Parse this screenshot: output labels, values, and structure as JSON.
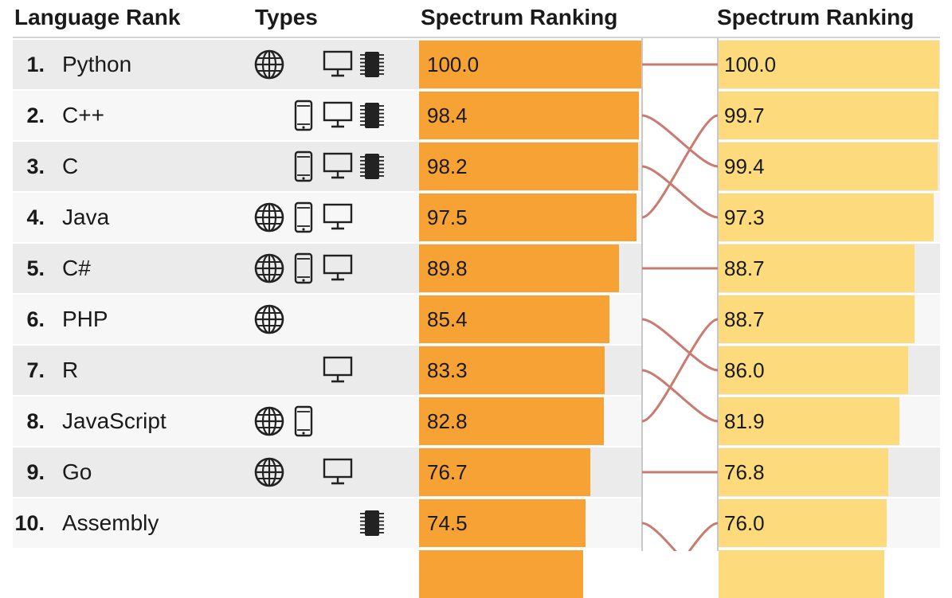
{
  "headers": {
    "language_rank": "Language Rank",
    "types": "Types",
    "spectrum_ranking_left": "Spectrum Ranking",
    "spectrum_ranking_right": "Spectrum Ranking"
  },
  "colors": {
    "left_bar": "#f7a234",
    "right_bar": "#fddb7c",
    "link": "#c87b70"
  },
  "chart_data": {
    "type": "bar",
    "columns": [
      "Spectrum Ranking",
      "Spectrum Ranking"
    ],
    "xlim": [
      0,
      100
    ],
    "rows": [
      {
        "rank": "1.",
        "language": "Python",
        "types": [
          "globe-icon",
          "desktop-icon",
          "chip-icon"
        ],
        "left": 100.0,
        "right": 100.0,
        "right_position": 1
      },
      {
        "rank": "2.",
        "language": "C++",
        "types": [
          "mobile-icon",
          "desktop-icon",
          "chip-icon"
        ],
        "left": 98.4,
        "right": 99.4,
        "right_position": 3
      },
      {
        "rank": "3.",
        "language": "C",
        "types": [
          "mobile-icon",
          "desktop-icon",
          "chip-icon"
        ],
        "left": 98.2,
        "right": 97.3,
        "right_position": 4
      },
      {
        "rank": "4.",
        "language": "Java",
        "types": [
          "globe-icon",
          "mobile-icon",
          "desktop-icon"
        ],
        "left": 97.5,
        "right": 99.7,
        "right_position": 2
      },
      {
        "rank": "5.",
        "language": "C#",
        "types": [
          "globe-icon",
          "mobile-icon",
          "desktop-icon"
        ],
        "left": 89.8,
        "right": 88.7,
        "right_position": 5
      },
      {
        "rank": "6.",
        "language": "PHP",
        "types": [
          "globe-icon"
        ],
        "left": 85.4,
        "right": 86.0,
        "right_position": 7
      },
      {
        "rank": "7.",
        "language": "R",
        "types": [
          "desktop-icon"
        ],
        "left": 83.3,
        "right": 81.9,
        "right_position": 8
      },
      {
        "rank": "8.",
        "language": "JavaScript",
        "types": [
          "globe-icon",
          "mobile-icon"
        ],
        "left": 82.8,
        "right": 88.7,
        "right_position": 6
      },
      {
        "rank": "9.",
        "language": "Go",
        "types": [
          "globe-icon",
          "desktop-icon"
        ],
        "left": 76.7,
        "right": 76.8,
        "right_position": 9
      },
      {
        "rank": "10.",
        "language": "Assembly",
        "types": [
          "chip-icon"
        ],
        "left": 74.5,
        "right": null,
        "right_position": null
      }
    ],
    "right_column_values": [
      100.0,
      99.7,
      99.4,
      97.3,
      88.7,
      88.7,
      86.0,
      81.9,
      76.8,
      76.0
    ]
  }
}
